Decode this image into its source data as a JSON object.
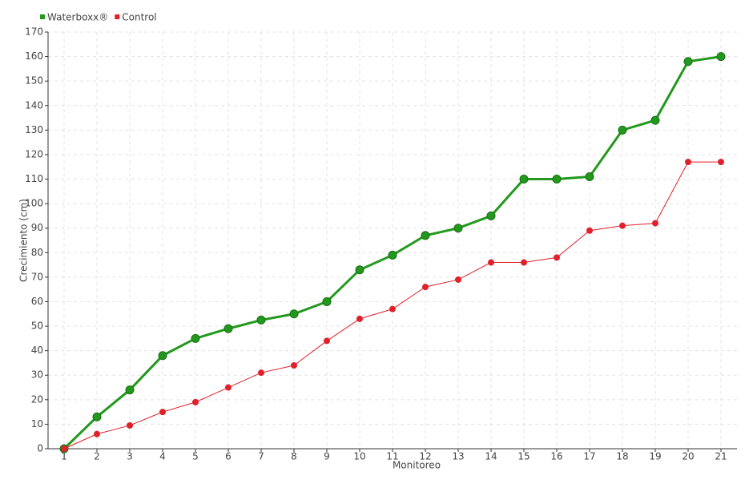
{
  "chart_data": {
    "type": "line",
    "x_label": "Monitoreo",
    "y_label": "Crecimiento (cm)",
    "categories": [
      "1",
      "2",
      "3",
      "4",
      "5",
      "6",
      "7",
      "8",
      "9",
      "10",
      "11",
      "12",
      "13",
      "14",
      "15",
      "16",
      "17",
      "18",
      "19",
      "20",
      "21"
    ],
    "series": [
      {
        "name": "Waterboxx®",
        "color": "#22991c",
        "values": [
          0,
          13,
          24,
          38,
          45,
          49,
          52.5,
          55,
          60,
          73,
          79,
          87,
          90,
          95,
          110,
          110,
          111,
          130,
          134,
          158,
          160
        ]
      },
      {
        "name": "Control",
        "color": "#e0202a",
        "values": [
          0,
          6,
          9.5,
          15,
          19,
          25,
          31,
          34,
          44,
          53,
          57,
          66,
          69,
          76,
          76,
          78,
          89,
          91,
          92,
          117,
          117
        ]
      }
    ],
    "ylim": [
      0,
      170
    ],
    "yticks": [
      0,
      10,
      20,
      30,
      40,
      50,
      60,
      70,
      80,
      90,
      100,
      110,
      120,
      130,
      140,
      150,
      160,
      170
    ],
    "grid": true,
    "legend": "top-left"
  }
}
